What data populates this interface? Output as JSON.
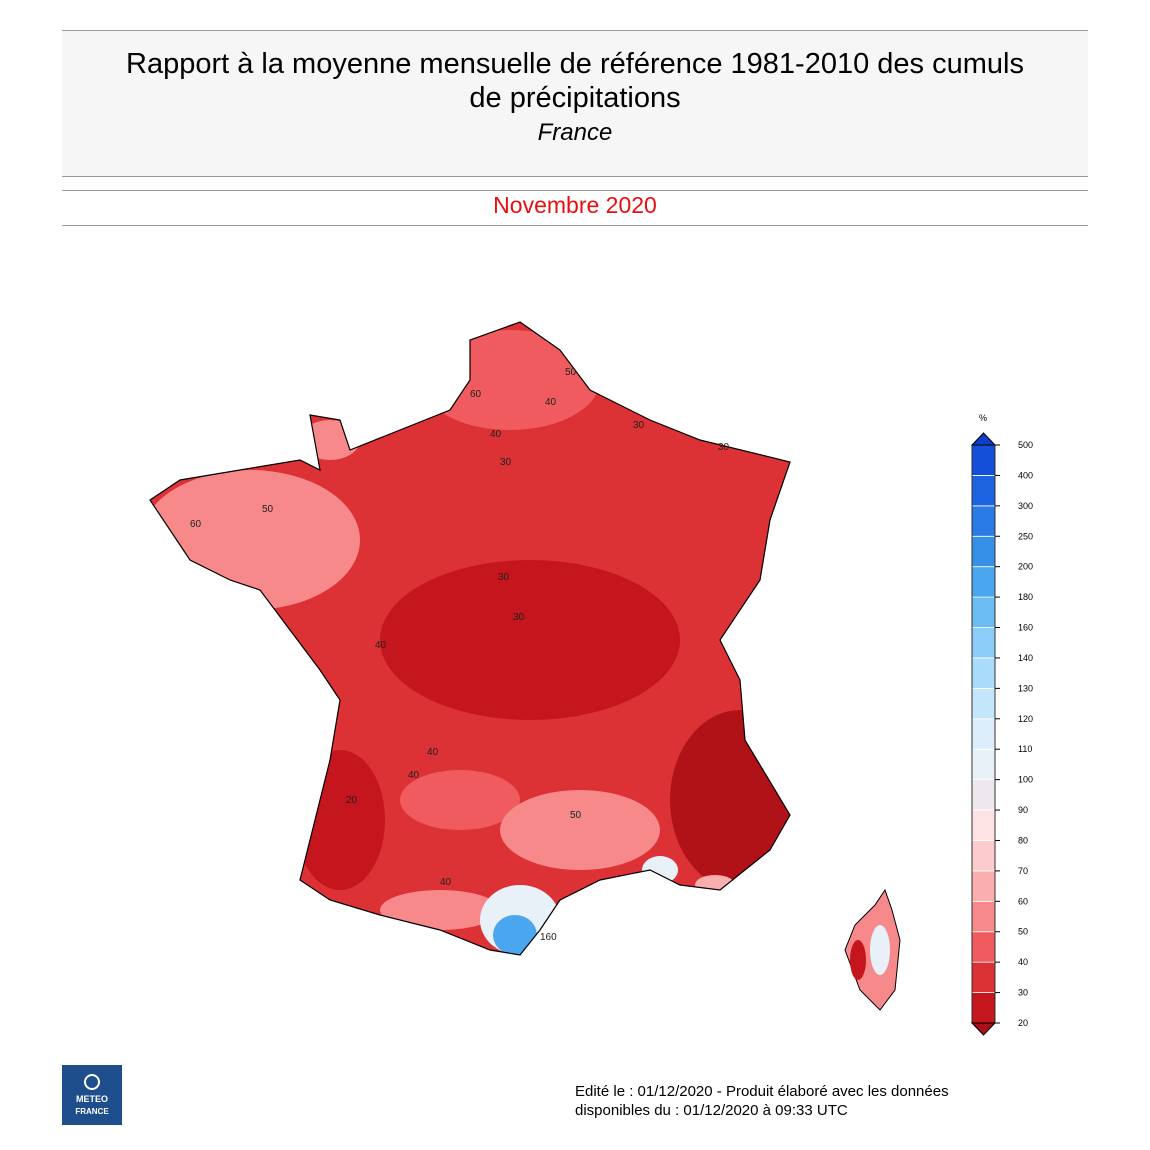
{
  "header": {
    "title_lines": [
      "Rapport à la moyenne mensuelle de référence 1981-2010 des cumuls",
      "de précipitations"
    ],
    "subtitle": "France",
    "period": "Novembre 2020"
  },
  "map": {
    "contour_labels": [
      "50",
      "40",
      "30",
      "40",
      "60",
      "50",
      "60",
      "30",
      "40",
      "30",
      "30",
      "40",
      "20",
      "40",
      "30",
      "40",
      "50",
      "160"
    ]
  },
  "legend": {
    "unit": "%",
    "ticks": [
      20,
      30,
      40,
      50,
      60,
      70,
      80,
      90,
      100,
      110,
      120,
      130,
      140,
      160,
      180,
      200,
      250,
      300,
      400,
      500
    ],
    "colors": [
      "#c4161c",
      "#dc3135",
      "#ef5b5f",
      "#f7898b",
      "#fbaeae",
      "#fccbcb",
      "#fde3e3",
      "#efe7ee",
      "#e8f0f8",
      "#dceefb",
      "#c4e6fb",
      "#a8dcfa",
      "#8ccdf7",
      "#6cbcf4",
      "#4aa6ee",
      "#3690e8",
      "#2a7be6",
      "#1e63e0",
      "#144fd9"
    ],
    "low_color": "#a8101a",
    "high_color": "#0d3fc9"
  },
  "footer": {
    "lines": [
      "Edité le : 01/12/2020 - Produit élaboré avec les données",
      "disponibles du : 01/12/2020 à 09:33 UTC"
    ]
  },
  "logo": {
    "lines": [
      "METEO",
      "FRANCE"
    ]
  }
}
